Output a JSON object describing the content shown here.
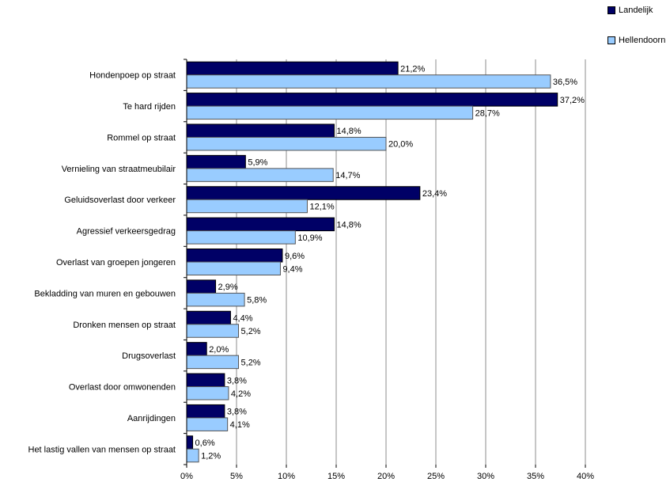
{
  "chart_data": {
    "type": "bar",
    "orientation": "horizontal",
    "title": "",
    "xlabel": "",
    "ylabel": "",
    "xlim": [
      0,
      40
    ],
    "x_ticks": [
      "0%",
      "5%",
      "10%",
      "15%",
      "20%",
      "25%",
      "30%",
      "35%",
      "40%"
    ],
    "grid": true,
    "legend_position": "top-right",
    "categories": [
      "Hondenpoep op straat",
      "Te hard rijden",
      "Rommel op straat",
      "Vernieling van straatmeubilair",
      "Geluidsoverlast door verkeer",
      "Agressief verkeersgedrag",
      "Overlast van groepen jongeren",
      "Bekladding van muren en gebouwen",
      "Dronken mensen op straat",
      "Drugsoverlast",
      "Overlast door omwonenden",
      "Aanrijdingen",
      "Het lastig vallen van mensen op straat"
    ],
    "series": [
      {
        "name": "Landelijk",
        "color": "#000066",
        "values": [
          21.2,
          37.2,
          14.8,
          5.9,
          23.4,
          14.8,
          9.6,
          2.9,
          4.4,
          2.0,
          3.8,
          3.8,
          0.6
        ],
        "labels": [
          "21,2%",
          "37,2%",
          "14,8%",
          "5,9%",
          "23,4%",
          "14,8%",
          "9,6%",
          "2,9%",
          "4,4%",
          "2,0%",
          "3,8%",
          "3,8%",
          "0,6%"
        ]
      },
      {
        "name": "Hellendoorn",
        "color": "#99ccff",
        "values": [
          36.5,
          28.7,
          20.0,
          14.7,
          12.1,
          10.9,
          9.4,
          5.8,
          5.2,
          5.2,
          4.2,
          4.1,
          1.2
        ],
        "labels": [
          "36,5%",
          "28,7%",
          "20,0%",
          "14,7%",
          "12,1%",
          "10,9%",
          "9,4%",
          "5,8%",
          "5,2%",
          "5,2%",
          "4,2%",
          "4,1%",
          "1,2%"
        ]
      }
    ]
  }
}
